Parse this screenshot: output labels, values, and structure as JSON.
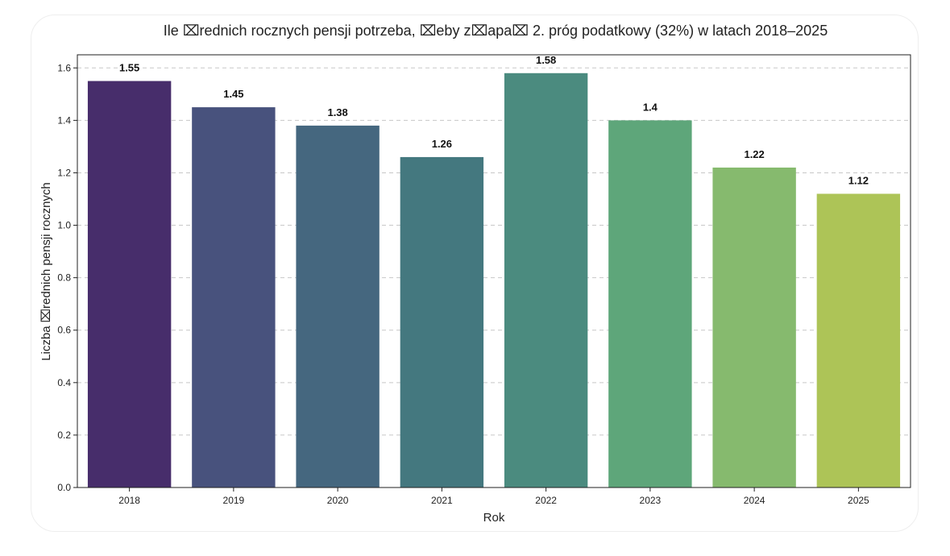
{
  "chart_data": {
    "type": "bar",
    "title": "Ile ⌧rednich rocznych pensji potrzeba, ⌧eby z⌧apa⌧ 2. próg podatkowy (32%) w latach 2018–2025",
    "xlabel": "Rok",
    "ylabel": "Liczba ⌧rednich pensji rocznych",
    "categories": [
      "2018",
      "2019",
      "2020",
      "2021",
      "2022",
      "2023",
      "2024",
      "2025"
    ],
    "values": [
      1.55,
      1.45,
      1.38,
      1.26,
      1.58,
      1.4,
      1.22,
      1.12
    ],
    "value_labels": [
      "1.55",
      "1.45",
      "1.38",
      "1.26",
      "1.58",
      "1.4",
      "1.22",
      "1.12"
    ],
    "colors": [
      "#472d6b",
      "#48527d",
      "#45677f",
      "#44787f",
      "#4b8b7f",
      "#5ea67a",
      "#86ba6e",
      "#adc457"
    ],
    "ylim": [
      0,
      1.65
    ],
    "yticks": [
      0.0,
      0.2,
      0.4,
      0.6,
      0.8,
      1.0,
      1.2,
      1.4,
      1.6
    ],
    "ytick_labels": [
      "0.0",
      "0.2",
      "0.4",
      "0.6",
      "0.8",
      "1.0",
      "1.2",
      "1.4",
      "1.6"
    ],
    "grid": "y-dashed"
  }
}
